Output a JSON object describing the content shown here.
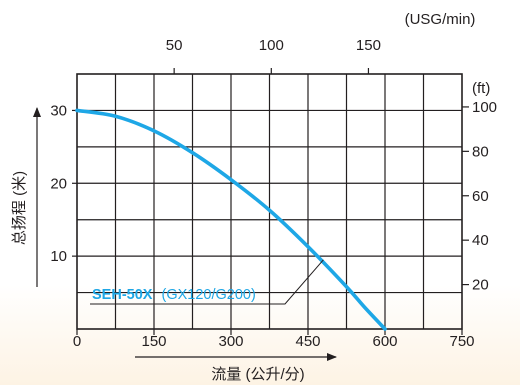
{
  "chart_data": {
    "type": "line",
    "title": "",
    "xlabel": "流量 (公升/分)",
    "ylabel": "总扬程 (米)",
    "xlim": [
      0,
      750
    ],
    "ylim": [
      0,
      35
    ],
    "x_ticks": [
      0,
      150,
      300,
      450,
      600,
      750
    ],
    "y_ticks": [
      10,
      20,
      30
    ],
    "secondary_x": {
      "label": "(USG/min)",
      "ticks": [
        50,
        100,
        150
      ],
      "unit_factor": 3.785
    },
    "secondary_y": {
      "label": "(ft)",
      "ticks": [
        20,
        40,
        60,
        80,
        100
      ],
      "unit_factor": 0.3048
    },
    "grid": true,
    "series": [
      {
        "name": "SEH-50X",
        "label_suffix": "(GX120/G200)",
        "color": "#1ea7e6",
        "x": [
          0,
          75,
          150,
          225,
          300,
          375,
          450,
          525,
          560,
          600
        ],
        "y": [
          30,
          29.2,
          27.2,
          24.2,
          20.5,
          16.3,
          11.3,
          5.8,
          3.0,
          0
        ]
      }
    ],
    "annotation_leader_point": {
      "x": 480,
      "y": 9.5
    }
  },
  "colors": {
    "axis": "#231f20",
    "grid": "#231f20",
    "curve": "#1ea7e6"
  }
}
